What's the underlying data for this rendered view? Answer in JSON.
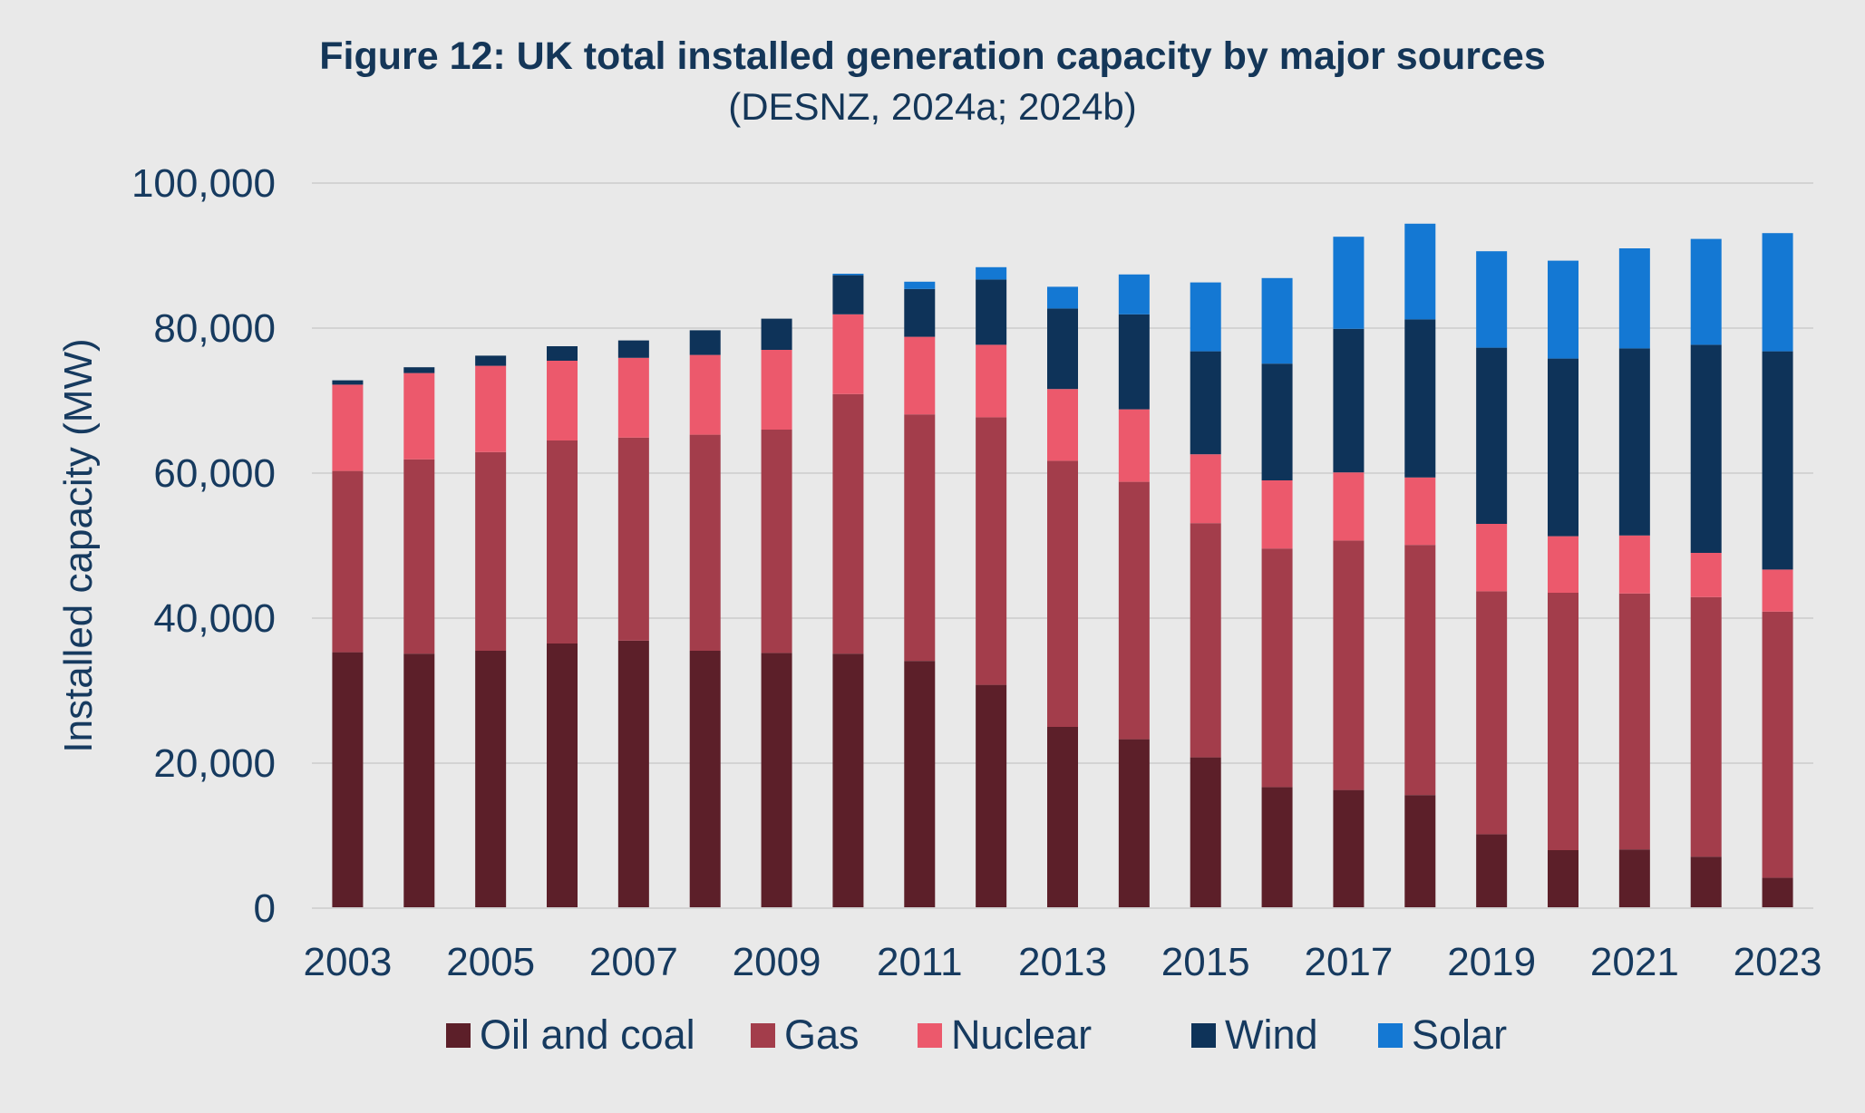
{
  "chart_data": {
    "type": "bar",
    "stacked": true,
    "title": "Figure 12: UK total installed generation capacity by major sources",
    "subtitle": "(DESNZ, 2024a; 2024b)",
    "xlabel": "",
    "ylabel": "Installed capacity (MW)",
    "ylim": [
      0,
      100000
    ],
    "yticks": [
      "0",
      "20,000",
      "40,000",
      "60,000",
      "80,000",
      "100,000"
    ],
    "grid": true,
    "legend_position": "bottom",
    "categories": [
      "2003",
      "2004",
      "2005",
      "2006",
      "2007",
      "2008",
      "2009",
      "2010",
      "2011",
      "2012",
      "2013",
      "2014",
      "2015",
      "2016",
      "2017",
      "2018",
      "2019",
      "2020",
      "2021",
      "2022",
      "2023"
    ],
    "xtick_labels": [
      "2003",
      "",
      "2005",
      "",
      "2007",
      "",
      "2009",
      "",
      "2011",
      "",
      "2013",
      "",
      "2015",
      "",
      "2017",
      "",
      "2019",
      "",
      "2021",
      "",
      "2023"
    ],
    "series": [
      {
        "name": "Oil and coal",
        "color": "#5c1f29",
        "values": [
          35300,
          35100,
          35500,
          36500,
          36900,
          35500,
          35200,
          35100,
          34100,
          30800,
          25000,
          23300,
          20800,
          16700,
          16300,
          15600,
          10200,
          8000,
          8100,
          7100,
          4200
        ]
      },
      {
        "name": "Gas",
        "color": "#a33d4b",
        "values": [
          25000,
          26800,
          27400,
          28000,
          28000,
          29800,
          30800,
          35800,
          34000,
          36900,
          36700,
          35500,
          32300,
          32900,
          34400,
          34500,
          33500,
          35500,
          35300,
          35800,
          36700
        ]
      },
      {
        "name": "Nuclear",
        "color": "#ec596c",
        "values": [
          11900,
          11900,
          11900,
          11000,
          11000,
          11000,
          11000,
          11000,
          10700,
          10000,
          9900,
          10000,
          9500,
          9400,
          9400,
          9300,
          9300,
          7800,
          8000,
          6100,
          5800
        ]
      },
      {
        "name": "Wind",
        "color": "#0e3359",
        "values": [
          600,
          800,
          1400,
          2000,
          2400,
          3400,
          4300,
          5400,
          6600,
          9000,
          11100,
          13100,
          14200,
          16100,
          19800,
          21800,
          24300,
          24500,
          25800,
          28700,
          30100
        ]
      },
      {
        "name": "Solar",
        "color": "#1478d3",
        "values": [
          0,
          0,
          0,
          0,
          0,
          0,
          0,
          200,
          1000,
          1700,
          3000,
          5500,
          9500,
          11800,
          12700,
          13200,
          13300,
          13500,
          13800,
          14600,
          16300
        ]
      }
    ]
  }
}
